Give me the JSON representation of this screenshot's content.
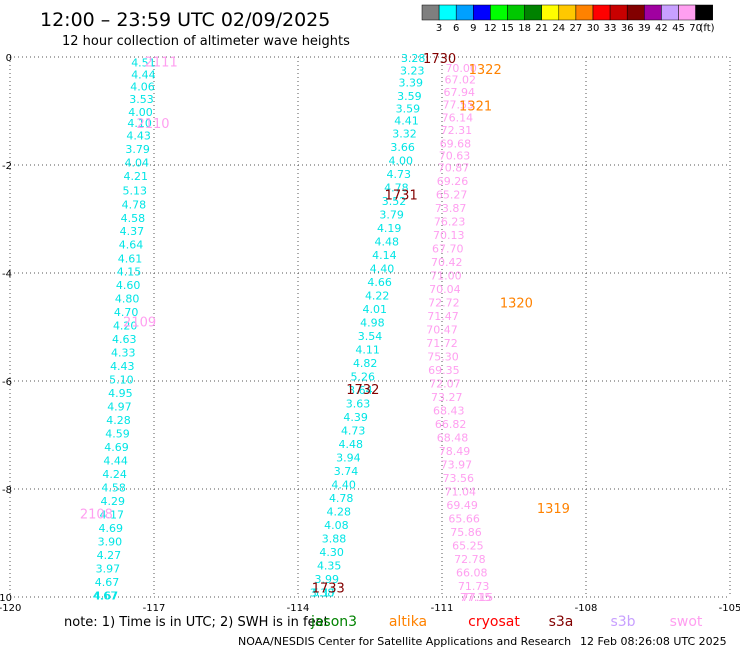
{
  "header": {
    "title": "12:00 – 23:59 UTC 02/09/2025",
    "subtitle": "12 hour collection of altimeter wave heights"
  },
  "colorbar": {
    "unit": "(ft)",
    "labels": [
      "3",
      "6",
      "9",
      "12",
      "15",
      "18",
      "21",
      "24",
      "27",
      "30",
      "33",
      "36",
      "39",
      "42",
      "45",
      "70"
    ],
    "colors": [
      "#7f7f7f",
      "#00ffff",
      "#00a0ff",
      "#0000ff",
      "#00ff00",
      "#00c800",
      "#008200",
      "#ffff00",
      "#ffc800",
      "#ff8200",
      "#ff0000",
      "#c80000",
      "#820000",
      "#a000a0",
      "#c8a0ff",
      "#ff9ff0",
      "#000000"
    ]
  },
  "footer": {
    "note": "note:  1) Time is in UTC; 2) SWH is in feet",
    "satellites": [
      {
        "name": "jason3",
        "color": "#008200"
      },
      {
        "name": "altika",
        "color": "#ff8200"
      },
      {
        "name": "cryosat",
        "color": "#ff0000"
      },
      {
        "name": "s3a",
        "color": "#820000"
      },
      {
        "name": "s3b",
        "color": "#c8a0ff"
      },
      {
        "name": "swot",
        "color": "#ff9ff0"
      }
    ],
    "credit": "NOAA/NESDIS Center for Satellite Applications and Research",
    "timestamp": "12 Feb 08:26:08 UTC 2025"
  },
  "chart_data": {
    "type": "scatter",
    "xlim": [
      -120,
      -105
    ],
    "ylim": [
      -10,
      0
    ],
    "x_ticks": [
      "-120",
      "-117",
      "-114",
      "-111",
      "-108",
      "-105"
    ],
    "y_ticks": [
      "0",
      "-2",
      "-4",
      "-6",
      "-8",
      "-10"
    ],
    "grid": true,
    "grid_style": "dotted",
    "series": [
      {
        "color": "#00e5e5",
        "x": [
          -117.22,
          -117.22,
          -117.24,
          -117.26,
          -117.28,
          -117.3,
          -117.32,
          -117.34,
          -117.36,
          -117.38,
          -117.4,
          -117.42,
          -117.44,
          -117.46,
          -117.48,
          -117.5,
          -117.52,
          -117.54,
          -117.56,
          -117.58,
          -117.6,
          -117.62,
          -117.64,
          -117.66,
          -117.68,
          -117.7,
          -117.72,
          -117.74,
          -117.76,
          -117.78,
          -117.8,
          -117.82,
          -117.84,
          -117.86,
          -117.88,
          -117.9,
          -117.92,
          -117.94,
          -117.96,
          -117.98,
          -118.0,
          -118.02
        ],
        "y": [
          -0.1,
          -0.32,
          -0.55,
          -0.78,
          -1.02,
          -1.22,
          -1.45,
          -1.7,
          -1.95,
          -2.2,
          -2.47,
          -2.73,
          -2.98,
          -3.22,
          -3.47,
          -3.73,
          -3.97,
          -4.22,
          -4.47,
          -4.72,
          -4.97,
          -5.22,
          -5.47,
          -5.72,
          -5.97,
          -6.22,
          -6.47,
          -6.72,
          -6.97,
          -7.22,
          -7.47,
          -7.72,
          -7.97,
          -8.22,
          -8.47,
          -8.72,
          -8.97,
          -9.22,
          -9.47,
          -9.72,
          -9.97,
          -9.97
        ],
        "values": [
          4.51,
          4.44,
          4.06,
          3.53,
          4.0,
          4.1,
          4.43,
          3.79,
          4.04,
          4.21,
          5.13,
          4.78,
          4.58,
          4.37,
          4.64,
          4.61,
          4.15,
          4.6,
          4.8,
          4.7,
          4.2,
          4.63,
          4.33,
          4.43,
          5.1,
          4.95,
          4.97,
          4.28,
          4.59,
          4.69,
          4.44,
          4.24,
          4.58,
          4.29,
          4.17,
          4.69,
          3.9,
          4.27,
          3.97,
          4.67,
          4.67,
          4.67
        ]
      },
      {
        "color": "#00e5e5",
        "x": [
          -111.6,
          -111.62,
          -111.65,
          -111.68,
          -111.71,
          -111.74,
          -111.78,
          -111.82,
          -111.86,
          -111.9,
          -111.95,
          -112.0,
          -112.05,
          -112.1,
          -112.15,
          -112.2,
          -112.25,
          -112.3,
          -112.35,
          -112.4,
          -112.45,
          -112.5,
          -112.55,
          -112.6,
          -112.65,
          -112.7,
          -112.75,
          -112.8,
          -112.85,
          -112.9,
          -112.95,
          -113.0,
          -113.05,
          -113.1,
          -113.15,
          -113.2,
          -113.25,
          -113.3,
          -113.35,
          -113.4,
          -113.45,
          -113.5
        ],
        "y": [
          -0.02,
          -0.25,
          -0.47,
          -0.72,
          -0.95,
          -1.18,
          -1.42,
          -1.67,
          -1.92,
          -2.17,
          -2.42,
          -2.67,
          -2.92,
          -3.17,
          -3.42,
          -3.67,
          -3.92,
          -4.17,
          -4.42,
          -4.67,
          -4.92,
          -5.17,
          -5.42,
          -5.67,
          -5.92,
          -6.17,
          -6.42,
          -6.67,
          -6.92,
          -7.17,
          -7.42,
          -7.67,
          -7.92,
          -8.17,
          -8.42,
          -8.67,
          -8.92,
          -9.17,
          -9.42,
          -9.67,
          -9.92,
          -9.92
        ],
        "values": [
          3.28,
          3.23,
          3.39,
          3.59,
          3.59,
          4.41,
          3.32,
          3.66,
          4.0,
          4.73,
          4.78,
          3.52,
          3.79,
          4.19,
          4.48,
          4.14,
          4.4,
          4.66,
          4.22,
          4.01,
          4.98,
          3.54,
          4.11,
          4.82,
          5.26,
          3.64,
          3.63,
          4.39,
          4.73,
          4.48,
          3.94,
          3.74,
          4.4,
          4.78,
          4.28,
          4.08,
          3.88,
          4.3,
          4.35,
          3.99,
          5.17,
          3.38
        ]
      },
      {
        "color": "#ff9ff0",
        "x": [
          -110.6,
          -110.62,
          -110.64,
          -110.66,
          -110.68,
          -110.7,
          -110.72,
          -110.74,
          -110.76,
          -110.78,
          -110.8,
          -110.82,
          -110.84,
          -110.86,
          -110.88,
          -110.9,
          -110.92,
          -110.94,
          -110.96,
          -110.98,
          -111.0,
          -111.0,
          -110.98,
          -110.96,
          -110.94,
          -110.9,
          -110.86,
          -110.82,
          -110.78,
          -110.74,
          -110.7,
          -110.66,
          -110.62,
          -110.58,
          -110.54,
          -110.5,
          -110.46,
          -110.42,
          -110.38,
          -110.34,
          -110.3,
          -110.26
        ],
        "y": [
          -0.2,
          -0.42,
          -0.65,
          -0.88,
          -1.12,
          -1.35,
          -1.6,
          -1.82,
          -2.05,
          -2.3,
          -2.55,
          -2.8,
          -3.05,
          -3.3,
          -3.55,
          -3.8,
          -4.05,
          -4.3,
          -4.55,
          -4.8,
          -5.05,
          -5.3,
          -5.55,
          -5.8,
          -6.05,
          -6.3,
          -6.55,
          -6.8,
          -7.05,
          -7.3,
          -7.55,
          -7.8,
          -8.05,
          -8.3,
          -8.55,
          -8.8,
          -9.05,
          -9.3,
          -9.55,
          -9.8,
          -10.0,
          -10.0
        ],
        "values": [
          70.0,
          67.02,
          67.94,
          77.55,
          76.14,
          72.31,
          69.68,
          70.63,
          70.87,
          69.26,
          65.27,
          73.87,
          76.23,
          70.13,
          67.7,
          70.42,
          71.0,
          70.04,
          72.72,
          71.47,
          70.47,
          71.72,
          75.3,
          69.35,
          72.07,
          73.27,
          68.43,
          66.82,
          68.48,
          78.49,
          73.97,
          73.56,
          71.04,
          69.49,
          65.66,
          75.86,
          65.25,
          72.78,
          66.08,
          71.73,
          77.15,
          77.15
        ]
      }
    ],
    "annotations": [
      {
        "text": "2111",
        "x": -116.85,
        "y": -0.08,
        "color": "#ff9ff0"
      },
      {
        "text": "2110",
        "x": -117.02,
        "y": -1.22,
        "color": "#ff9ff0"
      },
      {
        "text": "2109",
        "x": -117.3,
        "y": -4.9,
        "color": "#ff9ff0"
      },
      {
        "text": "2108",
        "x": -118.2,
        "y": -8.45,
        "color": "#ff9ff0"
      },
      {
        "text": "1730",
        "x": -111.05,
        "y": -0.02,
        "color": "#820000"
      },
      {
        "text": "1731",
        "x": -111.85,
        "y": -2.55,
        "color": "#820000"
      },
      {
        "text": "1732",
        "x": -112.65,
        "y": -6.15,
        "color": "#820000"
      },
      {
        "text": "1733",
        "x": -113.37,
        "y": -9.82,
        "color": "#820000"
      },
      {
        "text": "1322",
        "x": -110.1,
        "y": -0.22,
        "color": "#ff8200"
      },
      {
        "text": "1321",
        "x": -110.3,
        "y": -0.9,
        "color": "#ff8200"
      },
      {
        "text": "1320",
        "x": -109.45,
        "y": -4.55,
        "color": "#ff8200"
      },
      {
        "text": "1319",
        "x": -108.68,
        "y": -8.35,
        "color": "#ff8200"
      }
    ]
  }
}
